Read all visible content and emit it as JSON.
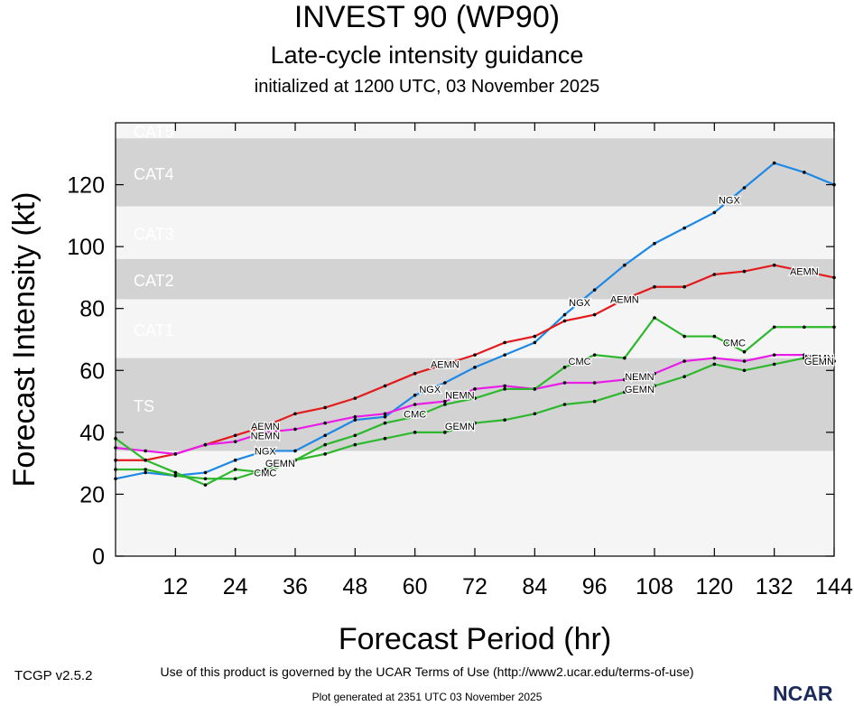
{
  "header": {
    "title": "INVEST 90 (WP90)",
    "subtitle": "Late-cycle intensity guidance",
    "init": "initialized at 1200 UTC, 03 November 2025"
  },
  "footer": {
    "version": "TCGP v2.5.2",
    "terms": "Use of this product is governed by the UCAR Terms of Use (http://www2.ucar.edu/terms-of-use)",
    "generated": "Plot generated at 2351 UTC   03 November 2025",
    "logo": "NCAR"
  },
  "chart_data": {
    "type": "line",
    "xlabel": "Forecast Period (hr)",
    "ylabel": "Forecast Intensity (kt)",
    "xlim": [
      0,
      144
    ],
    "ylim": [
      0,
      140
    ],
    "xticks": [
      12,
      24,
      36,
      48,
      60,
      72,
      84,
      96,
      108,
      120,
      132,
      144
    ],
    "yticks": [
      0,
      20,
      40,
      60,
      80,
      100,
      120
    ],
    "categories": [
      {
        "label": "TS",
        "range": [
          34,
          64
        ],
        "color": "#d3d3d3"
      },
      {
        "label": "CAT1",
        "range": [
          64,
          83
        ],
        "color": "#f5f5f5"
      },
      {
        "label": "CAT2",
        "range": [
          83,
          96
        ],
        "color": "#d3d3d3"
      },
      {
        "label": "CAT3",
        "range": [
          96,
          113
        ],
        "color": "#f5f5f5"
      },
      {
        "label": "CAT4",
        "range": [
          113,
          135
        ],
        "color": "#d3d3d3"
      },
      {
        "label": "CAT5",
        "range": [
          135,
          140
        ],
        "color": "#f5f5f5"
      }
    ],
    "series": [
      {
        "name": "NGX",
        "color": "#1e88e5",
        "x": [
          0,
          6,
          12,
          18,
          24,
          30,
          36,
          42,
          48,
          54,
          60,
          66,
          72,
          78,
          84,
          90,
          96,
          102,
          108,
          114,
          120,
          126,
          132,
          138,
          144
        ],
        "y": [
          25,
          27,
          26,
          27,
          31,
          34,
          34,
          39,
          44,
          45,
          52,
          56,
          61,
          65,
          69,
          78,
          86,
          94,
          101,
          106,
          111,
          119,
          127,
          124,
          120
        ]
      },
      {
        "name": "AEMN",
        "color": "#e41a1c",
        "x": [
          0,
          6,
          12,
          18,
          24,
          30,
          36,
          42,
          48,
          54,
          60,
          66,
          72,
          78,
          84,
          90,
          96,
          102,
          108,
          114,
          120,
          126,
          132,
          138,
          144
        ],
        "y": [
          31,
          31,
          33,
          36,
          39,
          42,
          46,
          48,
          51,
          55,
          59,
          62,
          65,
          69,
          71,
          76,
          78,
          83,
          87,
          87,
          91,
          92,
          94,
          92,
          90
        ]
      },
      {
        "name": "NEMN",
        "color": "#e81ee8",
        "x": [
          0,
          6,
          12,
          18,
          24,
          30,
          36,
          42,
          48,
          54,
          60,
          66,
          72,
          78,
          84,
          90,
          96,
          102,
          108,
          114,
          120,
          126,
          132,
          138,
          144
        ],
        "y": [
          35,
          34,
          33,
          36,
          37,
          40,
          41,
          43,
          45,
          46,
          49,
          50,
          54,
          55,
          54,
          56,
          56,
          57,
          59,
          63,
          64,
          63,
          65,
          65,
          63
        ]
      },
      {
        "name": "CMC",
        "color": "#2db82d",
        "x": [
          0,
          6,
          12,
          18,
          24,
          30,
          36,
          42,
          48,
          54,
          60,
          66,
          72,
          78,
          84,
          90,
          96,
          102,
          108,
          114,
          120,
          126,
          132,
          138,
          144
        ],
        "y": [
          38,
          31,
          27,
          23,
          28,
          27,
          31,
          36,
          39,
          43,
          45,
          49,
          51,
          54,
          54,
          61,
          65,
          64,
          77,
          71,
          71,
          66,
          74,
          74,
          74
        ]
      },
      {
        "name": "GEMN",
        "color": "#2db82d",
        "x": [
          0,
          6,
          12,
          18,
          24,
          30,
          36,
          42,
          48,
          54,
          60,
          66,
          72,
          78,
          84,
          90,
          96,
          102,
          108,
          114,
          120,
          126,
          132,
          138,
          144
        ],
        "y": [
          28,
          28,
          26,
          25,
          25,
          28,
          31,
          33,
          36,
          38,
          40,
          40,
          43,
          44,
          46,
          49,
          50,
          53,
          55,
          58,
          62,
          60,
          62,
          64,
          63
        ]
      }
    ],
    "line_labels": [
      {
        "series": "AEMN",
        "text": "AEMN",
        "x": 30,
        "y": 42
      },
      {
        "series": "AEMN",
        "text": "AEMN",
        "x": 66,
        "y": 62
      },
      {
        "series": "AEMN",
        "text": "AEMN",
        "x": 102,
        "y": 83
      },
      {
        "series": "AEMN",
        "text": "AEMN",
        "x": 138,
        "y": 92
      },
      {
        "series": "NGX",
        "text": "NGX",
        "x": 30,
        "y": 34
      },
      {
        "series": "NGX",
        "text": "NGX",
        "x": 63,
        "y": 54
      },
      {
        "series": "NGX",
        "text": "NGX",
        "x": 93,
        "y": 82
      },
      {
        "series": "NGX",
        "text": "NGX",
        "x": 123,
        "y": 115
      },
      {
        "series": "NEMN",
        "text": "NEMN",
        "x": 30,
        "y": 39
      },
      {
        "series": "NEMN",
        "text": "NEMN",
        "x": 69,
        "y": 52
      },
      {
        "series": "NEMN",
        "text": "NEMN",
        "x": 105,
        "y": 58
      },
      {
        "series": "NEMN",
        "text": "NEMN",
        "x": 141,
        "y": 64
      },
      {
        "series": "CMC",
        "text": "CMC",
        "x": 30,
        "y": 27
      },
      {
        "series": "CMC",
        "text": "CMC",
        "x": 60,
        "y": 46
      },
      {
        "series": "CMC",
        "text": "CMC",
        "x": 93,
        "y": 63
      },
      {
        "series": "CMC",
        "text": "CMC",
        "x": 124,
        "y": 69
      },
      {
        "series": "GEMN",
        "text": "GEMN",
        "x": 33,
        "y": 30
      },
      {
        "series": "GEMN",
        "text": "GEMN",
        "x": 69,
        "y": 42
      },
      {
        "series": "GEMN",
        "text": "GEMN",
        "x": 105,
        "y": 54
      },
      {
        "series": "GEMN",
        "text": "GEMN",
        "x": 141,
        "y": 63
      }
    ]
  }
}
